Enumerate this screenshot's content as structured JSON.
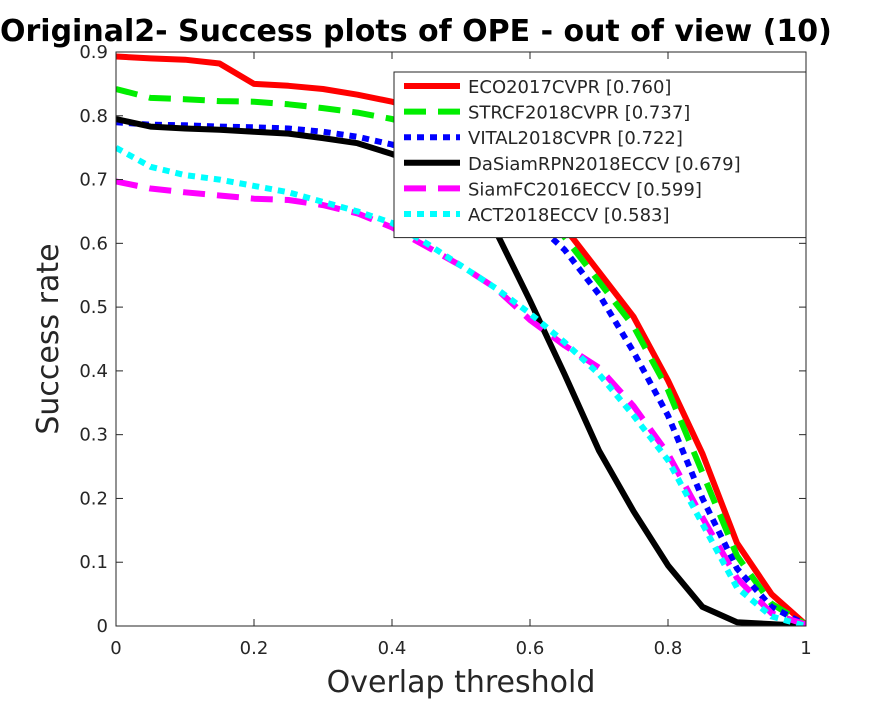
{
  "chart_data": {
    "type": "line",
    "title": "Original2- Success plots of OPE - out of view (10)",
    "xlabel": "Overlap threshold",
    "ylabel": "Success rate",
    "xlim": [
      0,
      1
    ],
    "ylim": [
      0,
      0.9
    ],
    "xticks": [
      "0",
      "0.2",
      "0.4",
      "0.6",
      "0.8",
      "1"
    ],
    "yticks": [
      "0",
      "0.1",
      "0.2",
      "0.3",
      "0.4",
      "0.5",
      "0.6",
      "0.7",
      "0.8",
      "0.9"
    ],
    "grid": false,
    "legend_position": "top-right",
    "series": [
      {
        "name": "ECO2017CVPR [0.760]",
        "color": "#ff0000",
        "dash": "solid",
        "x": [
          0,
          0.05,
          0.1,
          0.15,
          0.2,
          0.25,
          0.3,
          0.35,
          0.4,
          0.45,
          0.5,
          0.55,
          0.6,
          0.65,
          0.7,
          0.75,
          0.8,
          0.85,
          0.9,
          0.95,
          1
        ],
        "y": [
          0.893,
          0.89,
          0.888,
          0.882,
          0.85,
          0.847,
          0.842,
          0.833,
          0.822,
          0.805,
          0.79,
          0.765,
          0.705,
          0.625,
          0.555,
          0.485,
          0.385,
          0.27,
          0.13,
          0.05,
          0.002
        ]
      },
      {
        "name": "STRCF2018CVPR [0.737]",
        "color": "#00ee00",
        "dash": "dashed",
        "x": [
          0,
          0.05,
          0.1,
          0.15,
          0.2,
          0.25,
          0.3,
          0.35,
          0.4,
          0.45,
          0.5,
          0.55,
          0.6,
          0.65,
          0.7,
          0.75,
          0.8,
          0.85,
          0.9,
          0.95,
          1
        ],
        "y": [
          0.842,
          0.828,
          0.826,
          0.823,
          0.822,
          0.818,
          0.812,
          0.805,
          0.795,
          0.778,
          0.76,
          0.74,
          0.685,
          0.61,
          0.54,
          0.47,
          0.37,
          0.24,
          0.11,
          0.035,
          0.002
        ]
      },
      {
        "name": "VITAL2018CVPR [0.722]",
        "color": "#0000ff",
        "dash": "dotted",
        "x": [
          0,
          0.05,
          0.1,
          0.15,
          0.2,
          0.25,
          0.3,
          0.35,
          0.4,
          0.45,
          0.5,
          0.55,
          0.6,
          0.65,
          0.7,
          0.75,
          0.8,
          0.85,
          0.9,
          0.95,
          1
        ],
        "y": [
          0.79,
          0.786,
          0.785,
          0.783,
          0.782,
          0.78,
          0.775,
          0.767,
          0.755,
          0.735,
          0.715,
          0.695,
          0.64,
          0.59,
          0.52,
          0.43,
          0.33,
          0.2,
          0.09,
          0.03,
          0.002
        ]
      },
      {
        "name": "DaSiamRPN2018ECCV [0.679]",
        "color": "#000000",
        "dash": "solid",
        "x": [
          0,
          0.05,
          0.1,
          0.15,
          0.2,
          0.25,
          0.3,
          0.35,
          0.4,
          0.45,
          0.5,
          0.55,
          0.6,
          0.65,
          0.7,
          0.75,
          0.8,
          0.85,
          0.9,
          0.95,
          1
        ],
        "y": [
          0.795,
          0.783,
          0.78,
          0.778,
          0.775,
          0.772,
          0.765,
          0.757,
          0.74,
          0.72,
          0.69,
          0.62,
          0.51,
          0.395,
          0.275,
          0.18,
          0.095,
          0.03,
          0.006,
          0.003,
          0
        ]
      },
      {
        "name": "SiamFC2016ECCV [0.599]",
        "color": "#ff00ff",
        "dash": "dashed",
        "x": [
          0,
          0.05,
          0.1,
          0.15,
          0.2,
          0.25,
          0.3,
          0.35,
          0.4,
          0.45,
          0.5,
          0.55,
          0.6,
          0.65,
          0.7,
          0.75,
          0.8,
          0.85,
          0.9,
          0.95,
          1
        ],
        "y": [
          0.697,
          0.686,
          0.68,
          0.675,
          0.67,
          0.668,
          0.66,
          0.647,
          0.625,
          0.595,
          0.565,
          0.53,
          0.48,
          0.44,
          0.405,
          0.345,
          0.27,
          0.17,
          0.075,
          0.02,
          0.002
        ]
      },
      {
        "name": "ACT2018ECCV [0.583]",
        "color": "#00ffff",
        "dash": "dotted",
        "x": [
          0,
          0.05,
          0.1,
          0.15,
          0.2,
          0.25,
          0.3,
          0.35,
          0.4,
          0.45,
          0.5,
          0.55,
          0.6,
          0.65,
          0.7,
          0.75,
          0.8,
          0.85,
          0.9,
          0.95,
          1
        ],
        "y": [
          0.75,
          0.72,
          0.707,
          0.7,
          0.69,
          0.68,
          0.665,
          0.65,
          0.632,
          0.6,
          0.565,
          0.53,
          0.49,
          0.445,
          0.395,
          0.33,
          0.26,
          0.16,
          0.06,
          0.015,
          0
        ]
      }
    ]
  }
}
